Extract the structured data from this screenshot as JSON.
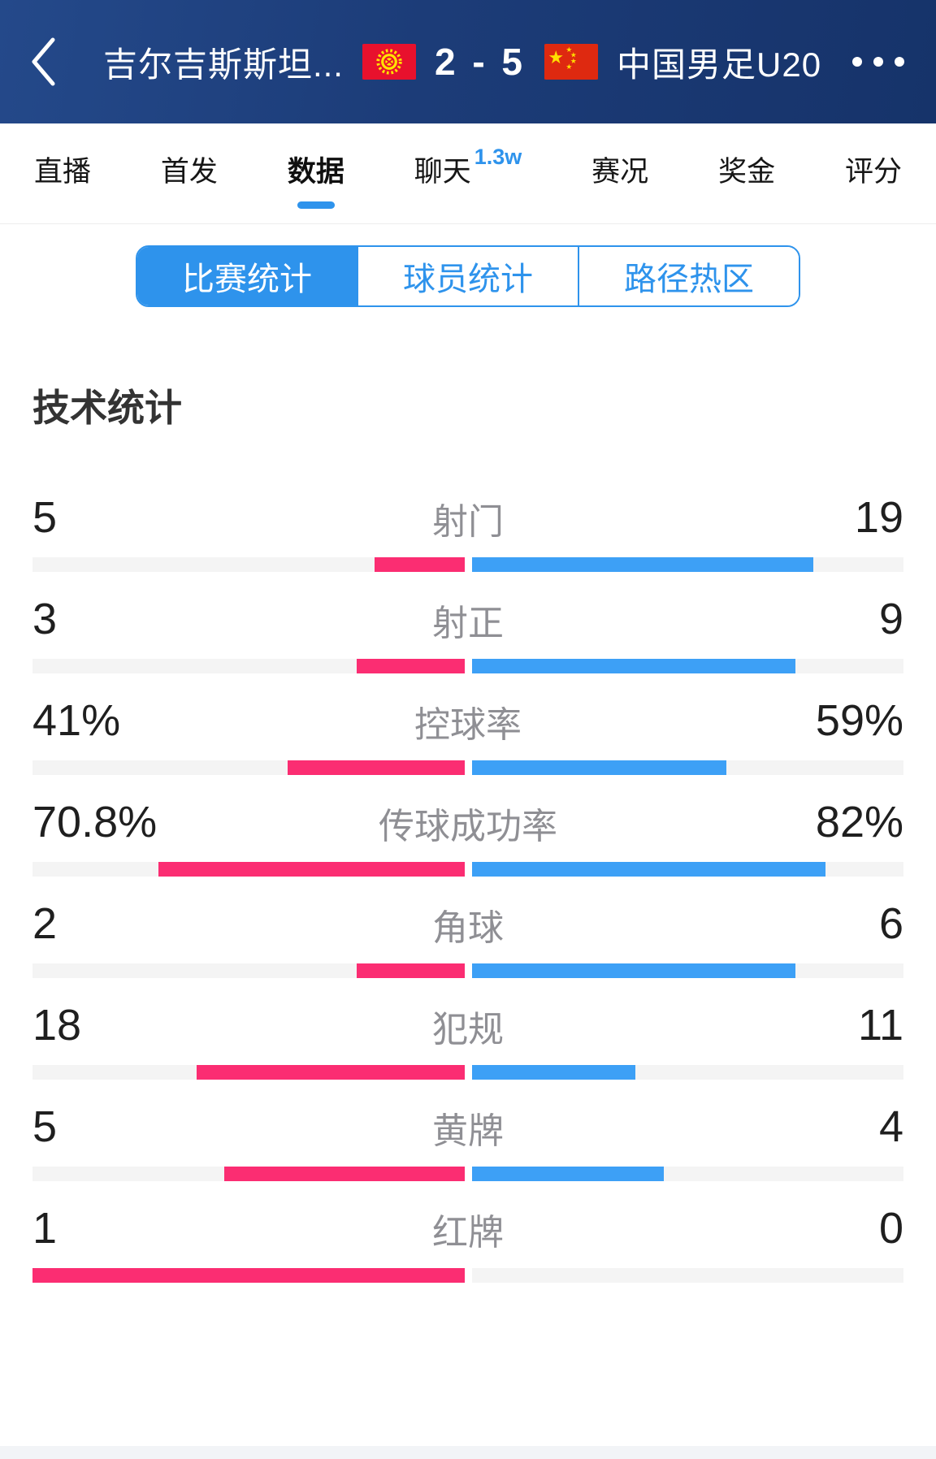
{
  "header": {
    "home_team": "吉尔吉斯斯坦...",
    "score": "2 - 5",
    "away_team": "中国男足U20"
  },
  "icons": {
    "back": "chevron-left",
    "more": "ellipsis-dots",
    "home_flag": "kyrgyzstan-flag",
    "away_flag": "china-flag"
  },
  "tabs": [
    {
      "label": "直播",
      "active": false
    },
    {
      "label": "首发",
      "active": false
    },
    {
      "label": "数据",
      "active": true
    },
    {
      "label": "聊天",
      "active": false,
      "badge": "1.3w"
    },
    {
      "label": "赛况",
      "active": false
    },
    {
      "label": "奖金",
      "active": false
    },
    {
      "label": "评分",
      "active": false
    }
  ],
  "sub_tabs": [
    {
      "label": "比赛统计",
      "active": true
    },
    {
      "label": "球员统计",
      "active": false
    },
    {
      "label": "路径热区",
      "active": false
    }
  ],
  "section_title": "技术统计",
  "stats": [
    {
      "label": "射门",
      "home": "5",
      "away": "19"
    },
    {
      "label": "射正",
      "home": "3",
      "away": "9"
    },
    {
      "label": "控球率",
      "home": "41%",
      "away": "59%"
    },
    {
      "label": "传球成功率",
      "home": "70.8%",
      "away": "82%"
    },
    {
      "label": "角球",
      "home": "2",
      "away": "6"
    },
    {
      "label": "犯规",
      "home": "18",
      "away": "11"
    },
    {
      "label": "黄牌",
      "home": "5",
      "away": "4"
    },
    {
      "label": "红牌",
      "home": "1",
      "away": "0"
    }
  ],
  "colors": {
    "home_bar": "#fb2d72",
    "away_bar": "#3da0f6",
    "bar_track": "#f4f4f4",
    "accent_blue": "#2e93ec",
    "header_bg": "#1c3c78"
  }
}
